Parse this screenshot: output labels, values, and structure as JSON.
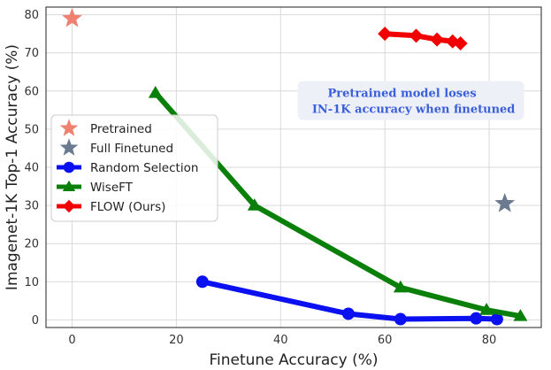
{
  "chart_data": {
    "type": "line",
    "xlabel": "Finetune Accuracy (%)",
    "ylabel": "Imagenet-1K Top-1 Accuracy (%)",
    "xlim": [
      -5,
      90
    ],
    "ylim": [
      -2,
      82
    ],
    "xticks": [
      0,
      20,
      40,
      60,
      80
    ],
    "yticks": [
      0,
      10,
      20,
      30,
      40,
      50,
      60,
      70,
      80
    ],
    "grid": true,
    "legend_position": "center-left",
    "annotation": {
      "line1": "Pretrained model loses",
      "line2": "IN-1K accuracy when finetuned",
      "color": "#3b5fd9"
    },
    "series": [
      {
        "name": "Pretrained",
        "color": "#f08070",
        "marker": "star",
        "line": false,
        "points": [
          [
            0,
            79
          ]
        ]
      },
      {
        "name": "Full Finetuned",
        "color": "#6b7a8f",
        "marker": "star",
        "line": false,
        "points": [
          [
            83,
            30.5
          ]
        ]
      },
      {
        "name": "Random Selection",
        "color": "#0a10f0",
        "marker": "circle",
        "line": true,
        "points": [
          [
            25,
            10
          ],
          [
            53,
            1.6
          ],
          [
            63,
            0.2
          ],
          [
            77.5,
            0.4
          ],
          [
            81.5,
            0.2
          ]
        ]
      },
      {
        "name": "WiseFT",
        "color": "#0a800a",
        "marker": "triangle",
        "line": true,
        "points": [
          [
            16,
            59.5
          ],
          [
            35,
            30
          ],
          [
            63,
            8.5
          ],
          [
            79.5,
            2.6
          ],
          [
            86,
            1
          ]
        ]
      },
      {
        "name": "FLOW (Ours)",
        "color": "#f00000",
        "marker": "diamond",
        "line": true,
        "points": [
          [
            60,
            75
          ],
          [
            66,
            74.5
          ],
          [
            70,
            73.5
          ],
          [
            73,
            73
          ],
          [
            74.5,
            72.5
          ]
        ]
      }
    ]
  }
}
